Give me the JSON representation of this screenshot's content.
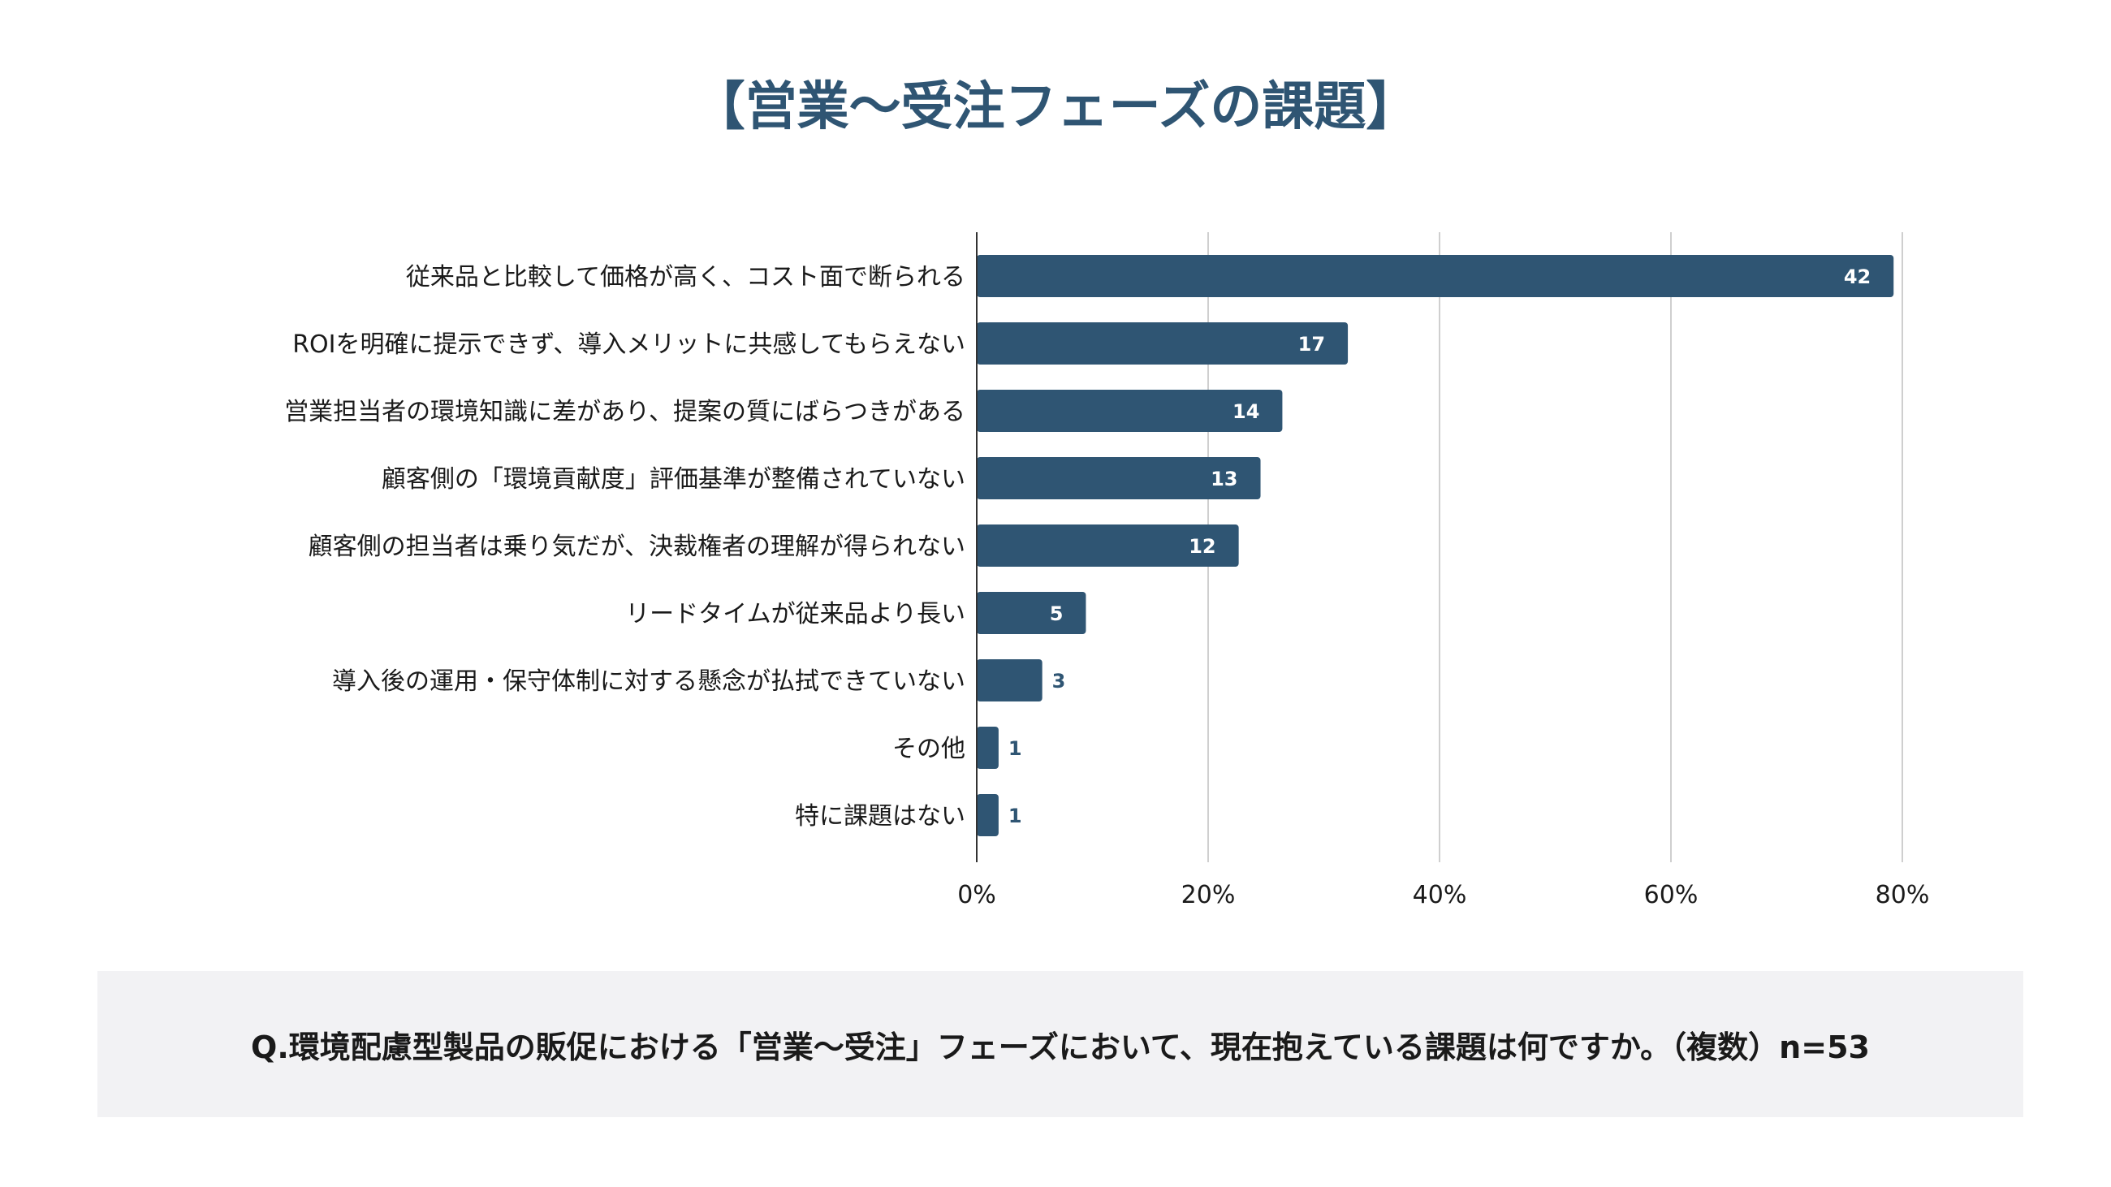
{
  "chart_data": {
    "type": "bar",
    "orientation": "horizontal",
    "title": "【営業～受注フェーズの課題】",
    "categories": [
      "従来品と比較して価格が高く、コスト面で断られる",
      "ROIを明確に提示できず、導入メリットに共感してもらえない",
      "営業担当者の環境知識に差があり、提案の質にばらつきがある",
      "顧客側の「環境貢献度」評価基準が整備されていない",
      "顧客側の担当者は乗り気だが、決裁権者の理解が得られない",
      "リードタイムが従来品より長い",
      "導入後の運用・保守体制に対する懸念が払拭できていない",
      "その他",
      "特に課題はない"
    ],
    "values": [
      42,
      17,
      14,
      13,
      12,
      5,
      3,
      1,
      1
    ],
    "n": 53,
    "x_ticks": [
      "0%",
      "20%",
      "40%",
      "60%",
      "80%"
    ],
    "xlim": [
      0,
      80
    ],
    "grid": true,
    "legend": "none",
    "bar_color": "#2f5573",
    "label_inside_color": "#ffffff",
    "label_outside_color": "#2f5573"
  },
  "question": "Q.環境配慮型製品の販促における「営業～受注」フェーズにおいて、現在抱えている課題は何ですか。（複数）n=53"
}
